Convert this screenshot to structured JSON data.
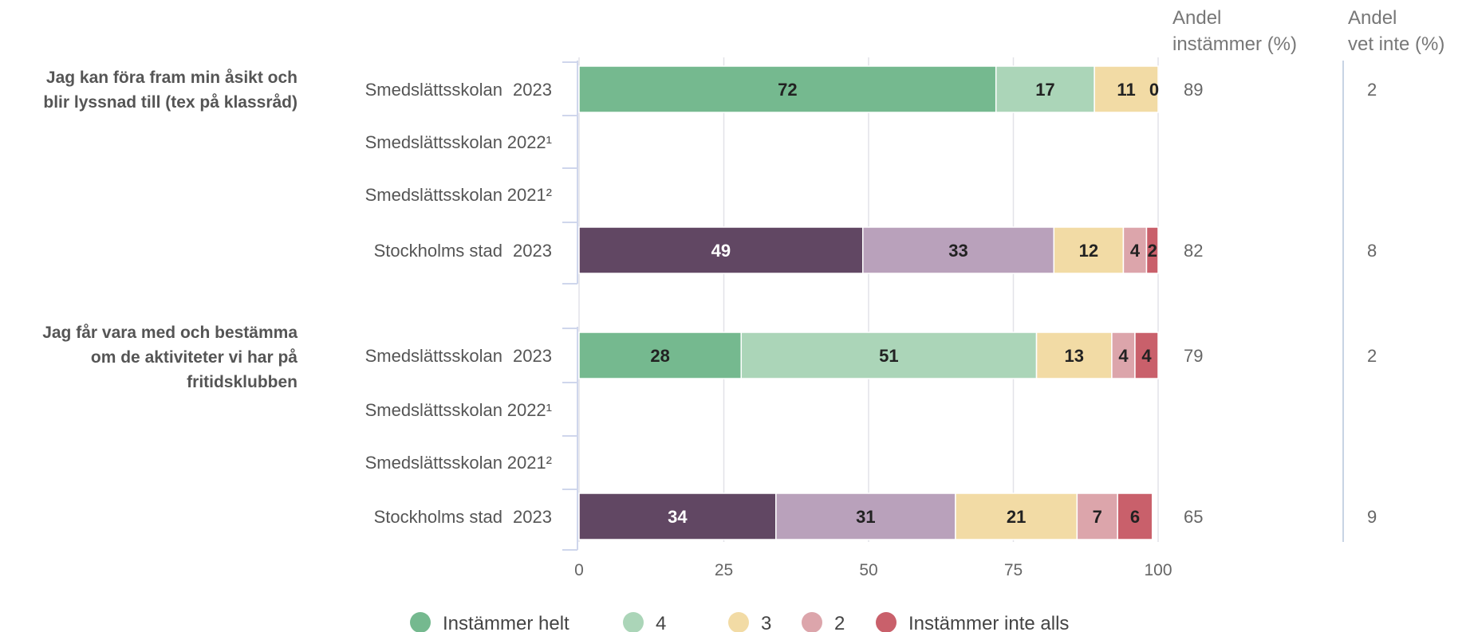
{
  "chart_data": {
    "type": "bar",
    "orientation": "horizontal",
    "stacked": true,
    "xlim": [
      0,
      100
    ],
    "xticks": [
      0,
      25,
      50,
      75,
      100
    ],
    "grid": true,
    "legend_position": "bottom",
    "columns": {
      "andel_instammer": "Andel\ninstämmer (%)",
      "andel_vet_inte": "Andel\nvet inte (%)"
    },
    "legend": [
      {
        "label": "Instämmer helt",
        "color": "#75b98f"
      },
      {
        "label": "4",
        "color": "#abd5b8"
      },
      {
        "label": "3",
        "color": "#f2dba5"
      },
      {
        "label": "2",
        "color": "#dca5ab"
      },
      {
        "label": "Instämmer inte alls",
        "color": "#c9606b"
      }
    ],
    "groups": [
      {
        "question": "Jag kan föra fram min åsikt och\nblir lyssnad till (tex på klassråd)",
        "rows": [
          {
            "name": "Smedslättsskolan",
            "year": "2023",
            "palette": "school",
            "values": [
              72,
              17,
              11,
              0,
              0
            ],
            "labels": [
              "72",
              "17",
              "11",
              "0",
              ""
            ],
            "andel_instammer": "89",
            "andel_vet_inte": "2"
          },
          {
            "name": "Smedslättsskolan",
            "year": "2022¹",
            "palette": "school",
            "values": [],
            "labels": [],
            "andel_instammer": "",
            "andel_vet_inte": ""
          },
          {
            "name": "Smedslättsskolan",
            "year": "2021²",
            "palette": "school",
            "values": [],
            "labels": [],
            "andel_instammer": "",
            "andel_vet_inte": ""
          },
          {
            "name": "Stockholms stad",
            "year": "2023",
            "palette": "city",
            "values": [
              49,
              33,
              12,
              4,
              2
            ],
            "labels": [
              "49",
              "33",
              "12",
              "4",
              "2"
            ],
            "andel_instammer": "82",
            "andel_vet_inte": "8"
          }
        ]
      },
      {
        "question": "Jag får vara med och bestämma\nom de aktiviteter vi har på\nfritidsklubben",
        "rows": [
          {
            "name": "Smedslättsskolan",
            "year": "2023",
            "palette": "school",
            "values": [
              28,
              51,
              13,
              4,
              4
            ],
            "labels": [
              "28",
              "51",
              "13",
              "4",
              "4"
            ],
            "andel_instammer": "79",
            "andel_vet_inte": "2"
          },
          {
            "name": "Smedslättsskolan",
            "year": "2022¹",
            "palette": "school",
            "values": [],
            "labels": [],
            "andel_instammer": "",
            "andel_vet_inte": ""
          },
          {
            "name": "Smedslättsskolan",
            "year": "2021²",
            "palette": "school",
            "values": [],
            "labels": [],
            "andel_instammer": "",
            "andel_vet_inte": ""
          },
          {
            "name": "Stockholms stad",
            "year": "2023",
            "palette": "city",
            "values": [
              34,
              31,
              21,
              7,
              6
            ],
            "labels": [
              "34",
              "31",
              "21",
              "7",
              "6"
            ],
            "andel_instammer": "65",
            "andel_vet_inte": "9"
          }
        ]
      }
    ],
    "palettes": {
      "school": [
        "#75b98f",
        "#abd5b8",
        "#f2dba5",
        "#dca5ab",
        "#c9606b"
      ],
      "city": [
        "#614763",
        "#b9a1bb",
        "#f2dba5",
        "#dca5ab",
        "#c9606b"
      ]
    },
    "label_colors": {
      "school": [
        "#222222",
        "#222222",
        "#222222",
        "#222222",
        "#222222"
      ],
      "city": [
        "#ffffff",
        "#222222",
        "#222222",
        "#222222",
        "#222222"
      ]
    }
  }
}
